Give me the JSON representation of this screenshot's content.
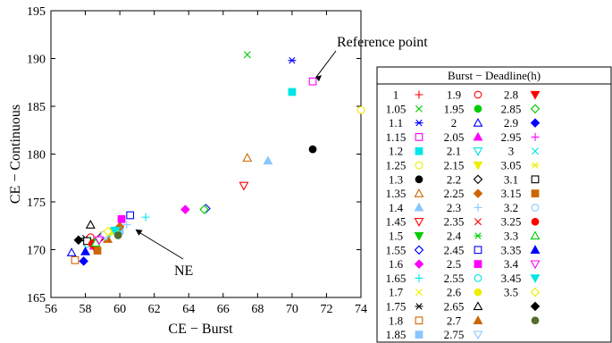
{
  "chart_data": {
    "type": "scatter",
    "title": "",
    "xlabel": "CE − Burst",
    "ylabel": "CE − Continuous",
    "xlim": [
      56,
      74
    ],
    "ylim": [
      165,
      195
    ],
    "xticks": [
      "56",
      "58",
      "60",
      "62",
      "64",
      "66",
      "68",
      "70",
      "72",
      "74"
    ],
    "yticks": [
      "165",
      "170",
      "175",
      "180",
      "185",
      "190",
      "195"
    ],
    "grid": false,
    "legend": {
      "title": "Burst − Deadline(h)",
      "placement": "right"
    },
    "annotations": [
      {
        "text": "Reference point",
        "x": 71.2,
        "y": 187.6
      },
      {
        "text": "NE",
        "x": 60.8,
        "y": 172.5
      }
    ],
    "series": [
      {
        "name": "1",
        "marker": "plus",
        "color": "#ff0000",
        "x": [
          58.8
        ],
        "y": [
          171.0
        ]
      },
      {
        "name": "1.05",
        "marker": "x",
        "color": "#00cc00",
        "x": [
          67.4
        ],
        "y": [
          190.4
        ]
      },
      {
        "name": "1.1",
        "marker": "asterisk",
        "color": "#0000ff",
        "x": [
          70.0
        ],
        "y": [
          189.8
        ]
      },
      {
        "name": "1.15",
        "marker": "square-open",
        "color": "#ff00ff",
        "x": [
          71.2
        ],
        "y": [
          187.6
        ]
      },
      {
        "name": "1.2",
        "marker": "square-filled",
        "color": "#00e5e5",
        "x": [
          70.0
        ],
        "y": [
          186.5
        ]
      },
      {
        "name": "1.25",
        "marker": "circle-open",
        "color": "#eeee00",
        "x": [
          74.0
        ],
        "y": [
          184.6
        ]
      },
      {
        "name": "1.3",
        "marker": "circle-filled",
        "color": "#000000",
        "x": [
          71.2
        ],
        "y": [
          180.5
        ]
      },
      {
        "name": "1.35",
        "marker": "triangle-up-open",
        "color": "#cc6600",
        "x": [
          67.4
        ],
        "y": [
          179.6
        ]
      },
      {
        "name": "1.4",
        "marker": "triangle-up-filled",
        "color": "#88c8ff",
        "x": [
          68.6
        ],
        "y": [
          179.3
        ]
      },
      {
        "name": "1.45",
        "marker": "triangle-down-open",
        "color": "#ff0000",
        "x": [
          67.2
        ],
        "y": [
          176.7
        ]
      },
      {
        "name": "1.5",
        "marker": "triangle-down-filled",
        "color": "#00cc00",
        "x": [
          58.4
        ],
        "y": [
          170.8
        ]
      },
      {
        "name": "1.55",
        "marker": "diamond-open",
        "color": "#0000ff",
        "x": [
          65.0
        ],
        "y": [
          174.3
        ]
      },
      {
        "name": "1.6",
        "marker": "diamond-filled",
        "color": "#ff00ff",
        "x": [
          63.8
        ],
        "y": [
          174.2
        ]
      },
      {
        "name": "1.65",
        "marker": "plus",
        "color": "#00e5e5",
        "x": [
          61.5
        ],
        "y": [
          173.4
        ]
      },
      {
        "name": "1.7",
        "marker": "x",
        "color": "#eeee00",
        "x": [
          59.0
        ],
        "y": [
          171.6
        ]
      },
      {
        "name": "1.75",
        "marker": "asterisk",
        "color": "#000000",
        "x": [
          58.0
        ],
        "y": [
          171.2
        ]
      },
      {
        "name": "1.8",
        "marker": "square-open",
        "color": "#cc6600",
        "x": [
          57.4
        ],
        "y": [
          168.9
        ]
      },
      {
        "name": "1.85",
        "marker": "square-filled",
        "color": "#88c8ff",
        "x": [
          60.0
        ],
        "y": [
          172.0
        ]
      },
      {
        "name": "1.9",
        "marker": "circle-open",
        "color": "#ff0000",
        "x": [
          58.3
        ],
        "y": [
          171.3
        ]
      },
      {
        "name": "1.95",
        "marker": "circle-filled",
        "color": "#00cc00",
        "x": [
          59.6
        ],
        "y": [
          172.0
        ]
      },
      {
        "name": "2",
        "marker": "triangle-up-open",
        "color": "#0000ff",
        "x": [
          57.2
        ],
        "y": [
          169.7
        ]
      },
      {
        "name": "2.05",
        "marker": "triangle-up-filled",
        "color": "#ff00ff",
        "x": [
          58.5
        ],
        "y": [
          170.4
        ]
      },
      {
        "name": "2.1",
        "marker": "triangle-down-open",
        "color": "#00e5e5",
        "x": [
          59.4
        ],
        "y": [
          171.7
        ]
      },
      {
        "name": "2.15",
        "marker": "triangle-down-filled",
        "color": "#eeee00",
        "x": [
          59.8
        ],
        "y": [
          172.0
        ]
      },
      {
        "name": "2.2",
        "marker": "diamond-open",
        "color": "#000000",
        "x": [
          58.9
        ],
        "y": [
          171.3
        ]
      },
      {
        "name": "2.25",
        "marker": "diamond-filled",
        "color": "#cc6600",
        "x": [
          60.0
        ],
        "y": [
          172.4
        ]
      },
      {
        "name": "2.3",
        "marker": "plus",
        "color": "#88c8ff",
        "x": [
          60.4
        ],
        "y": [
          172.6
        ]
      },
      {
        "name": "2.35",
        "marker": "x",
        "color": "#ff0000",
        "x": [
          58.6
        ],
        "y": [
          170.5
        ]
      },
      {
        "name": "2.4",
        "marker": "asterisk",
        "color": "#00cc00",
        "x": [
          58.2
        ],
        "y": [
          170.8
        ]
      },
      {
        "name": "2.45",
        "marker": "square-open",
        "color": "#0000ff",
        "x": [
          60.6
        ],
        "y": [
          173.6
        ]
      },
      {
        "name": "2.5",
        "marker": "square-filled",
        "color": "#ff00ff",
        "x": [
          60.1
        ],
        "y": [
          173.2
        ]
      },
      {
        "name": "2.55",
        "marker": "circle-open",
        "color": "#00e5e5",
        "x": [
          58.1
        ],
        "y": [
          170.6
        ]
      },
      {
        "name": "2.6",
        "marker": "circle-filled",
        "color": "#eeee00",
        "x": [
          59.5
        ],
        "y": [
          171.9
        ]
      },
      {
        "name": "2.65",
        "marker": "triangle-up-open",
        "color": "#000000",
        "x": [
          58.3
        ],
        "y": [
          172.6
        ]
      },
      {
        "name": "2.7",
        "marker": "triangle-up-filled",
        "color": "#cc6600",
        "x": [
          59.3
        ],
        "y": [
          171.1
        ]
      },
      {
        "name": "2.75",
        "marker": "triangle-down-open",
        "color": "#88c8ff",
        "x": [
          59.2
        ],
        "y": [
          171.4
        ]
      },
      {
        "name": "2.8",
        "marker": "triangle-down-filled",
        "color": "#ff0000",
        "x": [
          58.5
        ],
        "y": [
          170.3
        ]
      },
      {
        "name": "2.85",
        "marker": "diamond-open",
        "color": "#00cc00",
        "x": [
          64.9
        ],
        "y": [
          174.2
        ]
      },
      {
        "name": "2.9",
        "marker": "diamond-filled",
        "color": "#0000ff",
        "x": [
          57.9
        ],
        "y": [
          168.8
        ]
      },
      {
        "name": "2.95",
        "marker": "plus",
        "color": "#ff00ff",
        "x": [
          59.0
        ],
        "y": [
          171.5
        ]
      },
      {
        "name": "3",
        "marker": "x",
        "color": "#00e5e5",
        "x": [
          59.9
        ],
        "y": [
          172.1
        ]
      },
      {
        "name": "3.05",
        "marker": "asterisk",
        "color": "#eeee00",
        "x": [
          59.6
        ],
        "y": [
          171.8
        ]
      },
      {
        "name": "3.1",
        "marker": "square-open",
        "color": "#000000",
        "x": [
          58.1
        ],
        "y": [
          170.9
        ]
      },
      {
        "name": "3.15",
        "marker": "square-filled",
        "color": "#cc6600",
        "x": [
          58.7
        ],
        "y": [
          169.9
        ]
      },
      {
        "name": "3.2",
        "marker": "circle-open",
        "color": "#88c8ff",
        "x": [
          59.1
        ],
        "y": [
          171.6
        ]
      },
      {
        "name": "3.25",
        "marker": "circle-filled",
        "color": "#ff0000",
        "x": [
          58.4
        ],
        "y": [
          170.6
        ]
      },
      {
        "name": "3.3",
        "marker": "triangle-up-open",
        "color": "#00cc00",
        "x": [
          58.6
        ],
        "y": [
          170.7
        ]
      },
      {
        "name": "3.35",
        "marker": "triangle-up-filled",
        "color": "#0000ff",
        "x": [
          58.0
        ],
        "y": [
          169.8
        ]
      },
      {
        "name": "3.4",
        "marker": "triangle-down-open",
        "color": "#ff00ff",
        "x": [
          58.8
        ],
        "y": [
          171.0
        ]
      },
      {
        "name": "3.45",
        "marker": "triangle-down-filled",
        "color": "#00e5e5",
        "x": [
          59.7
        ],
        "y": [
          172.0
        ]
      },
      {
        "name": "3.5",
        "marker": "diamond-open",
        "color": "#eeee00",
        "x": [
          59.3
        ],
        "y": [
          171.9
        ]
      },
      {
        "name": "",
        "marker": "diamond-filled",
        "color": "#000000",
        "x": [
          57.6
        ],
        "y": [
          171.0
        ]
      },
      {
        "name": "",
        "marker": "circle-filled",
        "color": "#556b2f",
        "x": [
          59.9
        ],
        "y": [
          171.5
        ]
      }
    ]
  }
}
